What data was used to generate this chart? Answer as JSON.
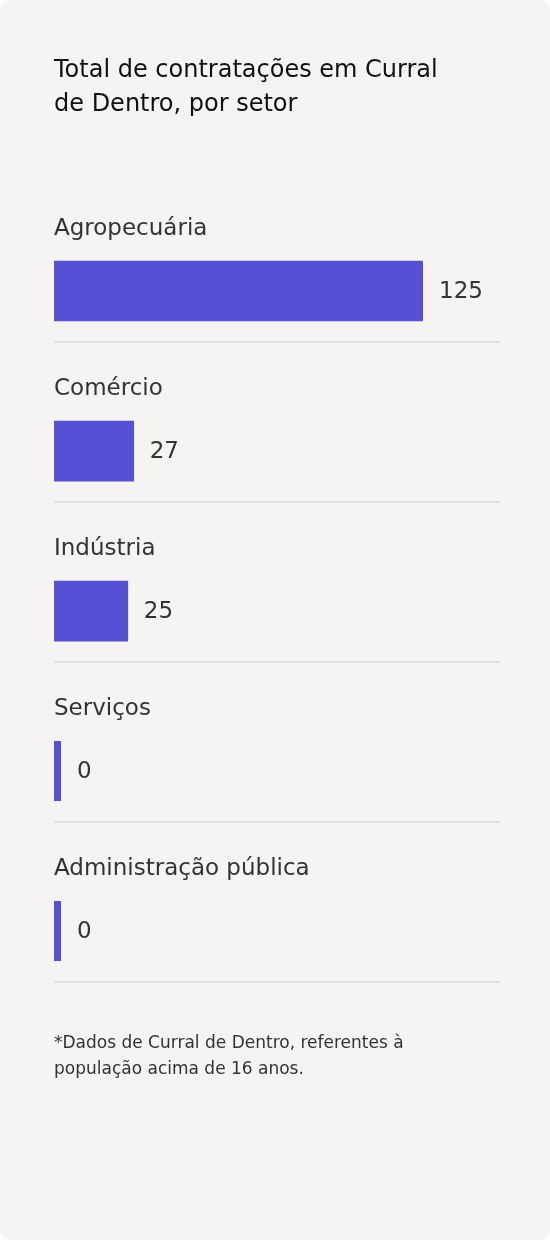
{
  "chart_data": {
    "type": "bar",
    "orientation": "horizontal",
    "title": "Total de contratações em Curral de Dentro, por setor",
    "categories": [
      "Agropecuária",
      "Comércio",
      "Indústria",
      "Serviços",
      "Administração pública"
    ],
    "values": [
      125,
      27,
      25,
      0,
      0
    ],
    "color": "#5650d4",
    "data_labels": true,
    "grid": "y",
    "legend": false,
    "tick_labels": "y",
    "annotations": [
      "*Dados de Curral de Dentro, referentes à população acima de 16 anos."
    ]
  }
}
